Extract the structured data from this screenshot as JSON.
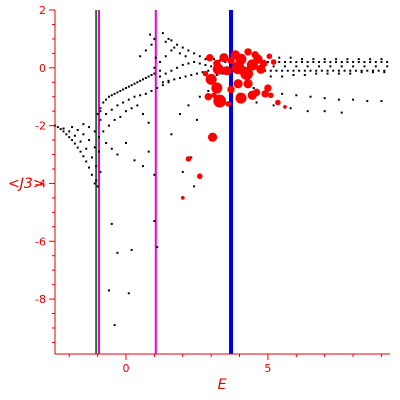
{
  "chart_data": {
    "type": "scatter",
    "title": "",
    "xlabel": "E",
    "ylabel": "<J3>",
    "xlim": [
      -2.5,
      9.3
    ],
    "ylim": [
      -9.9,
      2
    ],
    "x_ticks": [
      0,
      5
    ],
    "x_tick_labels": [
      "0",
      "5"
    ],
    "y_ticks": [
      2,
      0,
      -2,
      -4,
      -6,
      -8
    ],
    "y_tick_labels": [
      "2",
      "0",
      "-2",
      "-4",
      "-6",
      "-8"
    ],
    "grid": false,
    "legend": "none",
    "colors": {
      "axis": "#e60000",
      "background_points": "#000000",
      "highlight_points": "#ff0000",
      "line_green": "#1a7a1a",
      "line_magenta": "#e600e6",
      "line_blue": "#0000e6"
    },
    "vertical_lines": [
      {
        "x": -1.05,
        "color": "#1a7a1a",
        "width": 2
      },
      {
        "x": -0.95,
        "color": "#e600e6",
        "width": 2
      },
      {
        "x": 1.05,
        "color": "#e600e6",
        "width": 2
      },
      {
        "x": 3.7,
        "color": "#0000e6",
        "width": 4
      }
    ],
    "background_series": {
      "description_free": true,
      "points": [
        [
          -2.5,
          -2.0
        ],
        [
          -2.4,
          -2.05
        ],
        [
          -2.3,
          -2.12
        ],
        [
          -2.2,
          -2.2
        ],
        [
          -2.1,
          -2.3
        ],
        [
          -2.0,
          -2.4
        ],
        [
          -1.9,
          -2.5
        ],
        [
          -1.8,
          -2.62
        ],
        [
          -1.7,
          -2.76
        ],
        [
          -1.6,
          -2.9
        ],
        [
          -1.5,
          -3.06
        ],
        [
          -1.4,
          -3.24
        ],
        [
          -1.3,
          -3.45
        ],
        [
          -1.2,
          -3.7
        ],
        [
          -1.1,
          -4.0
        ],
        [
          -2.2,
          -2.1
        ],
        [
          -2.0,
          -2.2
        ],
        [
          -1.8,
          -2.35
        ],
        [
          -1.6,
          -2.55
        ],
        [
          -1.4,
          -2.8
        ],
        [
          -1.2,
          -3.1
        ],
        [
          -1.05,
          -3.4
        ],
        [
          -1.9,
          -2.05
        ],
        [
          -1.7,
          -2.15
        ],
        [
          -1.5,
          -2.3
        ],
        [
          -1.3,
          -2.5
        ],
        [
          -1.1,
          -2.75
        ],
        [
          -1.5,
          -1.95
        ],
        [
          -1.3,
          -2.05
        ],
        [
          -1.1,
          -2.2
        ],
        [
          -0.95,
          -2.4
        ],
        [
          -0.9,
          -1.4
        ],
        [
          -0.8,
          -1.2
        ],
        [
          -0.7,
          -1.1
        ],
        [
          -0.6,
          -1.0
        ],
        [
          -0.5,
          -0.95
        ],
        [
          -0.4,
          -0.9
        ],
        [
          -0.3,
          -0.85
        ],
        [
          -0.2,
          -0.8
        ],
        [
          -0.1,
          -0.75
        ],
        [
          0.0,
          -0.7
        ],
        [
          0.1,
          -0.65
        ],
        [
          0.2,
          -0.6
        ],
        [
          0.3,
          -0.55
        ],
        [
          0.4,
          -0.5
        ],
        [
          0.5,
          -0.45
        ],
        [
          0.6,
          -0.4
        ],
        [
          0.7,
          -0.35
        ],
        [
          0.8,
          -0.3
        ],
        [
          0.9,
          -0.25
        ],
        [
          1.0,
          -0.2
        ],
        [
          -0.9,
          -1.8
        ],
        [
          -0.7,
          -1.6
        ],
        [
          -0.5,
          -1.45
        ],
        [
          -0.3,
          -1.3
        ],
        [
          -0.1,
          -1.2
        ],
        [
          0.1,
          -1.1
        ],
        [
          0.3,
          -1.0
        ],
        [
          0.5,
          -0.95
        ],
        [
          0.7,
          -0.9
        ],
        [
          0.9,
          -0.8
        ],
        [
          1.1,
          -0.7
        ],
        [
          1.3,
          -0.6
        ],
        [
          1.5,
          -0.5
        ],
        [
          -0.8,
          -2.2
        ],
        [
          -0.6,
          -2.0
        ],
        [
          -0.4,
          -1.8
        ],
        [
          -0.2,
          -1.7
        ],
        [
          0.0,
          -1.5
        ],
        [
          0.2,
          -1.4
        ],
        [
          0.4,
          -1.3
        ],
        [
          0.6,
          -1.6
        ],
        [
          0.8,
          -1.9
        ],
        [
          -0.7,
          -2.6
        ],
        [
          -0.5,
          -2.8
        ],
        [
          -0.3,
          -3.0
        ],
        [
          0.0,
          -2.6
        ],
        [
          0.3,
          -3.2
        ],
        [
          0.6,
          -3.4
        ],
        [
          0.8,
          -2.9
        ],
        [
          1.0,
          -3.7
        ],
        [
          -0.5,
          -5.4
        ],
        [
          -0.3,
          -6.4
        ],
        [
          0.2,
          -6.3
        ],
        [
          0.1,
          -7.8
        ],
        [
          -0.4,
          -8.9
        ],
        [
          -0.6,
          -7.7
        ],
        [
          1.0,
          -5.3
        ],
        [
          1.1,
          -6.2
        ],
        [
          0.5,
          0.4
        ],
        [
          0.7,
          0.6
        ],
        [
          0.9,
          0.8
        ],
        [
          1.0,
          1.0
        ],
        [
          0.85,
          1.15
        ],
        [
          1.05,
          0.35
        ],
        [
          1.2,
          -0.1
        ],
        [
          1.0,
          0.0
        ],
        [
          1.2,
          0.2
        ],
        [
          1.4,
          0.4
        ],
        [
          1.6,
          0.6
        ],
        [
          1.8,
          0.8
        ],
        [
          2.0,
          0.7
        ],
        [
          2.2,
          0.6
        ],
        [
          2.4,
          0.5
        ],
        [
          2.6,
          0.4
        ],
        [
          2.8,
          0.3
        ],
        [
          1.2,
          -0.3
        ],
        [
          1.4,
          -0.2
        ],
        [
          1.6,
          -0.1
        ],
        [
          1.8,
          0.0
        ],
        [
          2.0,
          0.1
        ],
        [
          2.2,
          0.15
        ],
        [
          2.4,
          0.2
        ],
        [
          2.6,
          0.15
        ],
        [
          2.8,
          0.1
        ],
        [
          3.0,
          0.05
        ],
        [
          1.3,
          -0.5
        ],
        [
          1.5,
          -0.45
        ],
        [
          1.7,
          -0.4
        ],
        [
          1.9,
          -0.35
        ],
        [
          2.1,
          -0.3
        ],
        [
          2.3,
          -0.25
        ],
        [
          2.5,
          -0.2
        ],
        [
          2.7,
          -0.15
        ],
        [
          2.9,
          -0.1
        ],
        [
          1.3,
          1.2
        ],
        [
          1.5,
          1.0
        ],
        [
          1.4,
          0.9
        ],
        [
          1.6,
          0.95
        ],
        [
          1.7,
          0.7
        ],
        [
          1.9,
          0.5
        ],
        [
          2.1,
          0.4
        ],
        [
          3.0,
          -0.3
        ],
        [
          3.2,
          -0.25
        ],
        [
          3.4,
          -0.2
        ],
        [
          3.6,
          -0.15
        ],
        [
          3.8,
          -0.1
        ],
        [
          4.0,
          -0.05
        ],
        [
          4.2,
          0.0
        ],
        [
          4.4,
          0.05
        ],
        [
          4.6,
          0.1
        ],
        [
          4.8,
          0.15
        ],
        [
          5.0,
          0.2
        ],
        [
          5.2,
          0.2
        ],
        [
          5.4,
          0.2
        ],
        [
          5.6,
          0.2
        ],
        [
          5.8,
          0.2
        ],
        [
          6.0,
          0.2
        ],
        [
          6.2,
          0.2
        ],
        [
          6.4,
          0.2
        ],
        [
          6.6,
          0.2
        ],
        [
          6.8,
          0.2
        ],
        [
          7.0,
          0.2
        ],
        [
          7.2,
          0.2
        ],
        [
          7.4,
          0.2
        ],
        [
          7.6,
          0.2
        ],
        [
          7.8,
          0.2
        ],
        [
          8.0,
          0.2
        ],
        [
          8.2,
          0.2
        ],
        [
          8.4,
          0.2
        ],
        [
          8.6,
          0.2
        ],
        [
          8.8,
          0.2
        ],
        [
          9.0,
          0.2
        ],
        [
          9.2,
          0.2
        ],
        [
          3.1,
          0.3
        ],
        [
          3.3,
          0.25
        ],
        [
          3.5,
          0.2
        ],
        [
          3.7,
          0.15
        ],
        [
          3.9,
          0.1
        ],
        [
          4.1,
          0.05
        ],
        [
          4.3,
          0.0
        ],
        [
          4.5,
          -0.05
        ],
        [
          4.7,
          -0.1
        ],
        [
          4.9,
          -0.1
        ],
        [
          5.1,
          -0.1
        ],
        [
          5.3,
          -0.1
        ],
        [
          5.5,
          -0.1
        ],
        [
          5.7,
          -0.1
        ],
        [
          5.9,
          -0.1
        ],
        [
          6.1,
          -0.1
        ],
        [
          6.3,
          -0.1
        ],
        [
          6.5,
          -0.1
        ],
        [
          6.7,
          -0.1
        ],
        [
          6.9,
          -0.1
        ],
        [
          7.1,
          -0.1
        ],
        [
          7.3,
          -0.1
        ],
        [
          7.5,
          -0.1
        ],
        [
          7.7,
          -0.1
        ],
        [
          7.9,
          -0.1
        ],
        [
          8.1,
          -0.1
        ],
        [
          8.3,
          -0.1
        ],
        [
          8.5,
          -0.1
        ],
        [
          8.7,
          -0.1
        ],
        [
          8.9,
          -0.1
        ],
        [
          9.1,
          -0.1
        ],
        [
          5.0,
          0.4
        ],
        [
          5.4,
          0.35
        ],
        [
          5.8,
          0.35
        ],
        [
          6.2,
          0.3
        ],
        [
          6.6,
          0.3
        ],
        [
          7.0,
          0.3
        ],
        [
          7.4,
          0.3
        ],
        [
          7.8,
          0.3
        ],
        [
          8.2,
          0.3
        ],
        [
          8.6,
          0.3
        ],
        [
          9.0,
          0.3
        ],
        [
          5.2,
          0.05
        ],
        [
          5.6,
          0.05
        ],
        [
          6.0,
          0.05
        ],
        [
          6.4,
          0.05
        ],
        [
          6.8,
          0.05
        ],
        [
          7.2,
          0.05
        ],
        [
          7.6,
          0.05
        ],
        [
          8.0,
          0.05
        ],
        [
          8.4,
          0.05
        ],
        [
          8.8,
          0.05
        ],
        [
          9.2,
          0.05
        ],
        [
          5.1,
          -0.3
        ],
        [
          5.5,
          -0.3
        ],
        [
          5.9,
          -0.25
        ],
        [
          6.3,
          -0.25
        ],
        [
          6.7,
          -0.2
        ],
        [
          7.1,
          -0.2
        ],
        [
          7.5,
          -0.2
        ],
        [
          7.9,
          -0.2
        ],
        [
          8.3,
          -0.15
        ],
        [
          8.7,
          -0.15
        ],
        [
          9.1,
          -0.15
        ],
        [
          4.5,
          -0.7
        ],
        [
          5.0,
          -0.8
        ],
        [
          5.5,
          -0.9
        ],
        [
          6.0,
          -0.95
        ],
        [
          6.5,
          -1.0
        ],
        [
          7.0,
          -1.05
        ],
        [
          7.5,
          -1.1
        ],
        [
          8.0,
          -1.1
        ],
        [
          8.5,
          -1.15
        ],
        [
          9.0,
          -1.15
        ],
        [
          4.0,
          -0.9
        ],
        [
          4.2,
          -1.1
        ],
        [
          4.6,
          -1.2
        ],
        [
          5.2,
          -1.3
        ],
        [
          5.8,
          -1.4
        ],
        [
          6.4,
          -1.5
        ],
        [
          7.0,
          -1.5
        ],
        [
          7.6,
          -1.55
        ],
        [
          2.5,
          -1.8
        ],
        [
          2.3,
          -3.1
        ],
        [
          2.4,
          -4.1
        ],
        [
          2.0,
          -3.6
        ],
        [
          1.6,
          -2.3
        ],
        [
          1.9,
          -1.6
        ],
        [
          2.2,
          -1.3
        ],
        [
          2.6,
          -1.0
        ],
        [
          2.9,
          -0.8
        ],
        [
          3.2,
          -0.6
        ],
        [
          -1.05,
          -3.9
        ],
        [
          -1.0,
          -4.1
        ],
        [
          -0.9,
          -3.6
        ],
        [
          -0.95,
          -2.9
        ],
        [
          -1.0,
          -1.6
        ],
        [
          -0.9,
          -1.5
        ]
      ]
    },
    "highlight_series": {
      "points": [
        [
          3.3,
          -1.15,
          6
        ],
        [
          3.2,
          -0.7,
          5
        ],
        [
          3.0,
          -0.4,
          5
        ],
        [
          3.25,
          -0.05,
          5
        ],
        [
          3.55,
          -0.1,
          4
        ],
        [
          3.45,
          0.35,
          4
        ],
        [
          2.95,
          0.35,
          3
        ],
        [
          3.05,
          -2.4,
          4
        ],
        [
          2.6,
          -3.75,
          2
        ],
        [
          2.2,
          -3.15,
          2
        ],
        [
          2.0,
          -4.5,
          1
        ],
        [
          2.9,
          -1.0,
          3
        ],
        [
          3.95,
          0.0,
          6
        ],
        [
          4.05,
          0.3,
          5
        ],
        [
          4.25,
          -0.2,
          6
        ],
        [
          4.45,
          0.1,
          5
        ],
        [
          4.3,
          -0.55,
          4
        ],
        [
          4.45,
          -0.95,
          4
        ],
        [
          4.05,
          -1.05,
          5
        ],
        [
          3.95,
          -0.55,
          4
        ],
        [
          3.85,
          0.45,
          4
        ],
        [
          4.65,
          0.3,
          4
        ],
        [
          4.75,
          -0.05,
          4
        ],
        [
          4.85,
          0.15,
          3
        ],
        [
          4.6,
          -0.85,
          3
        ],
        [
          4.9,
          -0.9,
          3
        ],
        [
          5.0,
          -0.7,
          3
        ],
        [
          5.1,
          -0.95,
          2
        ],
        [
          5.35,
          -1.2,
          2
        ],
        [
          5.6,
          -1.35,
          1
        ],
        [
          4.3,
          0.55,
          3
        ],
        [
          3.7,
          0.25,
          3
        ],
        [
          3.7,
          -0.75,
          3
        ],
        [
          3.2,
          0.15,
          3
        ],
        [
          2.8,
          -0.2,
          2
        ],
        [
          4.55,
          0.45,
          3
        ],
        [
          5.05,
          0.4,
          2
        ],
        [
          5.2,
          0.2,
          2
        ],
        [
          3.6,
          -1.25,
          2
        ],
        [
          3.1,
          -0.95,
          2
        ]
      ]
    }
  }
}
